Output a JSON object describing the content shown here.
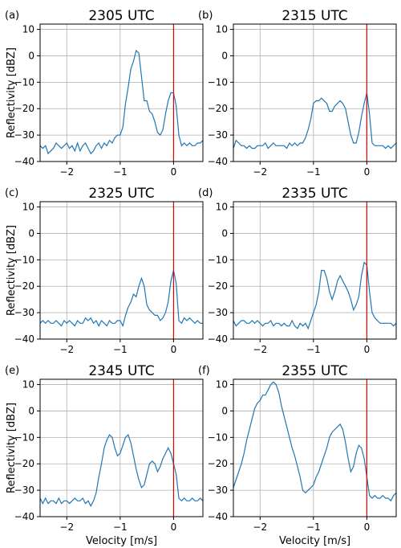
{
  "chart_data": [
    {
      "type": "line",
      "panel_label": "(a)",
      "title": "2305 UTC",
      "xlabel": "",
      "ylabel": "Reflectivity [dBZ]",
      "xlim": [
        -2.5,
        0.55
      ],
      "ylim": [
        -40,
        12
      ],
      "xticks": [
        -2,
        -1,
        0
      ],
      "yticks": [
        -40,
        -30,
        -20,
        -10,
        0,
        10
      ],
      "grid": true,
      "reference_line_x": 0,
      "reference_line_color": "#e00000",
      "series_color": "#1f77b4",
      "series": [
        {
          "x": [
            -2.5,
            -2.45,
            -2.4,
            -2.35,
            -2.3,
            -2.25,
            -2.2,
            -2.15,
            -2.1,
            -2.05,
            -2.0,
            -1.95,
            -1.9,
            -1.85,
            -1.8,
            -1.75,
            -1.7,
            -1.65,
            -1.6,
            -1.55,
            -1.5,
            -1.45,
            -1.4,
            -1.35,
            -1.3,
            -1.25,
            -1.2,
            -1.15,
            -1.1,
            -1.05,
            -1.0,
            -0.95,
            -0.9,
            -0.85,
            -0.8,
            -0.75,
            -0.7,
            -0.65,
            -0.6,
            -0.55,
            -0.5,
            -0.45,
            -0.4,
            -0.35,
            -0.3,
            -0.25,
            -0.2,
            -0.15,
            -0.1,
            -0.05,
            0.0,
            0.05,
            0.1,
            0.15,
            0.2,
            0.25,
            0.3,
            0.35,
            0.4,
            0.45,
            0.5,
            0.55
          ],
          "y": [
            -34,
            -35,
            -34,
            -37,
            -36,
            -35,
            -33,
            -34,
            -35,
            -34,
            -33,
            -35,
            -34,
            -36,
            -33,
            -36,
            -34,
            -33,
            -35,
            -37,
            -36,
            -34,
            -33,
            -35,
            -33,
            -34,
            -32,
            -33,
            -31,
            -30,
            -30,
            -27,
            -18,
            -12,
            -5,
            -2,
            2,
            1,
            -8,
            -17,
            -17,
            -21,
            -22,
            -25,
            -29,
            -30,
            -28,
            -22,
            -17,
            -14,
            -14,
            -19,
            -30,
            -34,
            -33,
            -34,
            -33,
            -34,
            -34,
            -33,
            -33,
            -32
          ]
        }
      ]
    },
    {
      "type": "line",
      "panel_label": "(b)",
      "title": "2315 UTC",
      "xlabel": "",
      "ylabel": "",
      "xlim": [
        -2.5,
        0.55
      ],
      "ylim": [
        -40,
        12
      ],
      "xticks": [
        -2,
        -1,
        0
      ],
      "yticks": [
        -40,
        -30,
        -20,
        -10,
        0,
        10
      ],
      "grid": true,
      "reference_line_x": 0,
      "reference_line_color": "#e00000",
      "series_color": "#1f77b4",
      "series": [
        {
          "x": [
            -2.5,
            -2.45,
            -2.4,
            -2.35,
            -2.3,
            -2.25,
            -2.2,
            -2.15,
            -2.1,
            -2.05,
            -2.0,
            -1.95,
            -1.9,
            -1.85,
            -1.8,
            -1.75,
            -1.7,
            -1.65,
            -1.6,
            -1.55,
            -1.5,
            -1.45,
            -1.4,
            -1.35,
            -1.3,
            -1.25,
            -1.2,
            -1.15,
            -1.1,
            -1.05,
            -1.0,
            -0.95,
            -0.9,
            -0.85,
            -0.8,
            -0.75,
            -0.7,
            -0.65,
            -0.6,
            -0.55,
            -0.5,
            -0.45,
            -0.4,
            -0.35,
            -0.3,
            -0.25,
            -0.2,
            -0.15,
            -0.1,
            -0.05,
            0.0,
            0.05,
            0.1,
            0.15,
            0.2,
            0.25,
            0.3,
            0.35,
            0.4,
            0.45,
            0.5,
            0.55
          ],
          "y": [
            -35,
            -32,
            -33,
            -34,
            -34,
            -35,
            -34,
            -35,
            -35,
            -34,
            -34,
            -34,
            -33,
            -35,
            -34,
            -33,
            -34,
            -34,
            -34,
            -34,
            -35,
            -33,
            -34,
            -33,
            -34,
            -33,
            -33,
            -31,
            -28,
            -24,
            -18,
            -17,
            -17,
            -16,
            -17,
            -18,
            -21,
            -21,
            -19,
            -18,
            -17,
            -18,
            -20,
            -25,
            -30,
            -33,
            -33,
            -29,
            -23,
            -18,
            -14,
            -22,
            -33,
            -34,
            -34,
            -34,
            -34,
            -35,
            -34,
            -35,
            -34,
            -33
          ]
        }
      ]
    },
    {
      "type": "line",
      "panel_label": "(c)",
      "title": "2325 UTC",
      "xlabel": "",
      "ylabel": "Reflectivity [dBZ]",
      "xlim": [
        -2.5,
        0.55
      ],
      "ylim": [
        -40,
        12
      ],
      "xticks": [
        -2,
        -1,
        0
      ],
      "yticks": [
        -40,
        -30,
        -20,
        -10,
        0,
        10
      ],
      "grid": true,
      "reference_line_x": 0,
      "reference_line_color": "#e00000",
      "series_color": "#1f77b4",
      "series": [
        {
          "x": [
            -2.5,
            -2.45,
            -2.4,
            -2.35,
            -2.3,
            -2.25,
            -2.2,
            -2.15,
            -2.1,
            -2.05,
            -2.0,
            -1.95,
            -1.9,
            -1.85,
            -1.8,
            -1.75,
            -1.7,
            -1.65,
            -1.6,
            -1.55,
            -1.5,
            -1.45,
            -1.4,
            -1.35,
            -1.3,
            -1.25,
            -1.2,
            -1.15,
            -1.1,
            -1.05,
            -1.0,
            -0.95,
            -0.9,
            -0.85,
            -0.8,
            -0.75,
            -0.7,
            -0.65,
            -0.6,
            -0.55,
            -0.5,
            -0.45,
            -0.4,
            -0.35,
            -0.3,
            -0.25,
            -0.2,
            -0.15,
            -0.1,
            -0.05,
            0.0,
            0.05,
            0.1,
            0.15,
            0.2,
            0.25,
            0.3,
            0.35,
            0.4,
            0.45,
            0.5,
            0.55
          ],
          "y": [
            -34,
            -33,
            -34,
            -33,
            -34,
            -34,
            -33,
            -34,
            -35,
            -33,
            -34,
            -33,
            -34,
            -35,
            -33,
            -34,
            -34,
            -32,
            -33,
            -32,
            -34,
            -33,
            -35,
            -33,
            -34,
            -35,
            -33,
            -34,
            -34,
            -33,
            -33,
            -35,
            -31,
            -28,
            -26,
            -23,
            -24,
            -20,
            -17,
            -20,
            -27,
            -29,
            -30,
            -31,
            -31,
            -33,
            -32,
            -30,
            -26,
            -18,
            -14,
            -19,
            -33,
            -34,
            -32,
            -33,
            -32,
            -33,
            -34,
            -33,
            -34,
            -34
          ]
        }
      ]
    },
    {
      "type": "line",
      "panel_label": "(d)",
      "title": "2335 UTC",
      "xlabel": "",
      "ylabel": "",
      "xlim": [
        -2.5,
        0.55
      ],
      "ylim": [
        -40,
        12
      ],
      "xticks": [
        -2,
        -1,
        0
      ],
      "yticks": [
        -40,
        -30,
        -20,
        -10,
        0,
        10
      ],
      "grid": true,
      "reference_line_x": 0,
      "reference_line_color": "#e00000",
      "series_color": "#1f77b4",
      "series": [
        {
          "x": [
            -2.5,
            -2.45,
            -2.4,
            -2.35,
            -2.3,
            -2.25,
            -2.2,
            -2.15,
            -2.1,
            -2.05,
            -2.0,
            -1.95,
            -1.9,
            -1.85,
            -1.8,
            -1.75,
            -1.7,
            -1.65,
            -1.6,
            -1.55,
            -1.5,
            -1.45,
            -1.4,
            -1.35,
            -1.3,
            -1.25,
            -1.2,
            -1.15,
            -1.1,
            -1.05,
            -1.0,
            -0.95,
            -0.9,
            -0.85,
            -0.8,
            -0.75,
            -0.7,
            -0.65,
            -0.6,
            -0.55,
            -0.5,
            -0.45,
            -0.4,
            -0.35,
            -0.3,
            -0.25,
            -0.2,
            -0.15,
            -0.1,
            -0.05,
            0.0,
            0.05,
            0.1,
            0.15,
            0.2,
            0.25,
            0.3,
            0.35,
            0.4,
            0.45,
            0.5,
            0.55
          ],
          "y": [
            -33,
            -35,
            -34,
            -33,
            -33,
            -34,
            -34,
            -33,
            -34,
            -33,
            -34,
            -35,
            -34,
            -34,
            -33,
            -35,
            -34,
            -34,
            -35,
            -34,
            -35,
            -35,
            -33,
            -35,
            -36,
            -34,
            -35,
            -34,
            -36,
            -33,
            -30,
            -27,
            -22,
            -14,
            -14,
            -17,
            -22,
            -25,
            -22,
            -18,
            -16,
            -18,
            -20,
            -22,
            -25,
            -29,
            -27,
            -24,
            -16,
            -11,
            -12,
            -22,
            -30,
            -32,
            -33,
            -34,
            -34,
            -34,
            -34,
            -34,
            -35,
            -34
          ]
        }
      ]
    },
    {
      "type": "line",
      "panel_label": "(e)",
      "title": "2345 UTC",
      "xlabel": "Velocity [m/s]",
      "ylabel": "Reflectivity [dBZ]",
      "xlim": [
        -2.5,
        0.55
      ],
      "ylim": [
        -40,
        12
      ],
      "xticks": [
        -2,
        -1,
        0
      ],
      "yticks": [
        -40,
        -30,
        -20,
        -10,
        0,
        10
      ],
      "grid": true,
      "reference_line_x": 0,
      "reference_line_color": "#e00000",
      "series_color": "#1f77b4",
      "series": [
        {
          "x": [
            -2.5,
            -2.45,
            -2.4,
            -2.35,
            -2.3,
            -2.25,
            -2.2,
            -2.15,
            -2.1,
            -2.05,
            -2.0,
            -1.95,
            -1.9,
            -1.85,
            -1.8,
            -1.75,
            -1.7,
            -1.65,
            -1.6,
            -1.55,
            -1.5,
            -1.45,
            -1.4,
            -1.35,
            -1.3,
            -1.25,
            -1.2,
            -1.15,
            -1.1,
            -1.05,
            -1.0,
            -0.95,
            -0.9,
            -0.85,
            -0.8,
            -0.75,
            -0.7,
            -0.65,
            -0.6,
            -0.55,
            -0.5,
            -0.45,
            -0.4,
            -0.35,
            -0.3,
            -0.25,
            -0.2,
            -0.15,
            -0.1,
            -0.05,
            0.0,
            0.05,
            0.1,
            0.15,
            0.2,
            0.25,
            0.3,
            0.35,
            0.4,
            0.45,
            0.5,
            0.55
          ],
          "y": [
            -33,
            -35,
            -33,
            -35,
            -34,
            -34,
            -35,
            -33,
            -35,
            -34,
            -34,
            -35,
            -34,
            -33,
            -34,
            -34,
            -33,
            -35,
            -34,
            -36,
            -34,
            -31,
            -25,
            -20,
            -14,
            -11,
            -9,
            -10,
            -14,
            -17,
            -16,
            -13,
            -10,
            -9,
            -12,
            -17,
            -22,
            -26,
            -29,
            -28,
            -24,
            -20,
            -19,
            -20,
            -23,
            -21,
            -18,
            -16,
            -14,
            -16,
            -20,
            -24,
            -33,
            -34,
            -33,
            -34,
            -34,
            -33,
            -34,
            -34,
            -33,
            -34
          ]
        }
      ]
    },
    {
      "type": "line",
      "panel_label": "(f)",
      "title": "2355 UTC",
      "xlabel": "Velocity [m/s]",
      "ylabel": "",
      "xlim": [
        -2.5,
        0.55
      ],
      "ylim": [
        -40,
        12
      ],
      "xticks": [
        -2,
        -1,
        0
      ],
      "yticks": [
        -40,
        -30,
        -20,
        -10,
        0,
        10
      ],
      "grid": true,
      "reference_line_x": 0,
      "reference_line_color": "#e00000",
      "series_color": "#1f77b4",
      "series": [
        {
          "x": [
            -2.5,
            -2.45,
            -2.4,
            -2.35,
            -2.3,
            -2.25,
            -2.2,
            -2.15,
            -2.1,
            -2.05,
            -2.0,
            -1.95,
            -1.9,
            -1.85,
            -1.8,
            -1.75,
            -1.7,
            -1.65,
            -1.6,
            -1.55,
            -1.5,
            -1.45,
            -1.4,
            -1.35,
            -1.3,
            -1.25,
            -1.2,
            -1.15,
            -1.1,
            -1.05,
            -1.0,
            -0.95,
            -0.9,
            -0.85,
            -0.8,
            -0.75,
            -0.7,
            -0.65,
            -0.6,
            -0.55,
            -0.5,
            -0.45,
            -0.4,
            -0.35,
            -0.3,
            -0.25,
            -0.2,
            -0.15,
            -0.1,
            -0.05,
            0.0,
            0.05,
            0.1,
            0.15,
            0.2,
            0.25,
            0.3,
            0.35,
            0.4,
            0.45,
            0.5,
            0.55
          ],
          "y": [
            -29,
            -26,
            -23,
            -20,
            -16,
            -11,
            -7,
            -3,
            1,
            3,
            4,
            6,
            6,
            8,
            10,
            11,
            10,
            7,
            2,
            -2,
            -6,
            -10,
            -14,
            -17,
            -21,
            -25,
            -30,
            -31,
            -30,
            -29,
            -28,
            -25,
            -23,
            -20,
            -17,
            -14,
            -10,
            -8,
            -7,
            -6,
            -5,
            -7,
            -12,
            -18,
            -23,
            -21,
            -16,
            -13,
            -14,
            -18,
            -25,
            -32,
            -33,
            -32,
            -33,
            -33,
            -32,
            -33,
            -33,
            -34,
            -32,
            -31
          ]
        }
      ]
    }
  ]
}
